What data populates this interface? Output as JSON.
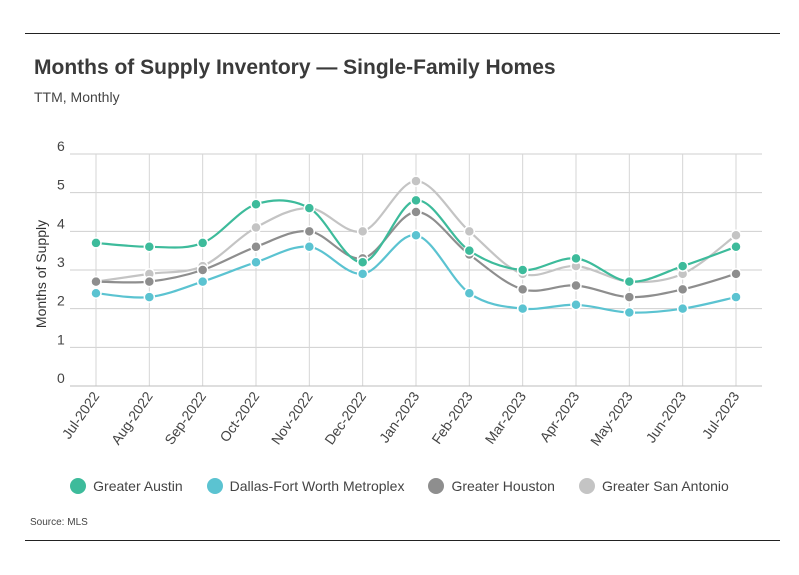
{
  "header": {
    "title": "Months of Supply Inventory — Single-Family Homes",
    "subtitle": "TTM, Monthly"
  },
  "footer": {
    "source": "Source: MLS"
  },
  "chart_data": {
    "type": "line",
    "title": "Months of Supply Inventory — Single-Family Homes",
    "subtitle": "TTM, Monthly",
    "xlabel": "",
    "ylabel": "Months of Supply",
    "ylim": [
      0,
      6
    ],
    "yticks": [
      "0",
      "1",
      "2",
      "3",
      "4",
      "5",
      "6"
    ],
    "grid": true,
    "legend_position": "bottom",
    "categories": [
      "Jul-2022",
      "Aug-2022",
      "Sep-2022",
      "Oct-2022",
      "Nov-2022",
      "Dec-2022",
      "Jan-2023",
      "Feb-2023",
      "Mar-2023",
      "Apr-2023",
      "May-2023",
      "Jun-2023",
      "Jul-2023"
    ],
    "series": [
      {
        "name": "Greater Austin",
        "color": "#3dbb9b",
        "values": [
          3.7,
          3.6,
          3.7,
          4.7,
          4.6,
          3.2,
          4.8,
          3.5,
          3.0,
          3.3,
          2.7,
          3.1,
          3.6
        ]
      },
      {
        "name": "Dallas-Fort Worth Metroplex",
        "color": "#5bc3d1",
        "values": [
          2.4,
          2.3,
          2.7,
          3.2,
          3.6,
          2.9,
          3.9,
          2.4,
          2.0,
          2.1,
          1.9,
          2.0,
          2.3
        ]
      },
      {
        "name": "Greater Houston",
        "color": "#8e8e8e",
        "values": [
          2.7,
          2.7,
          3.0,
          3.6,
          4.0,
          3.3,
          4.5,
          3.4,
          2.5,
          2.6,
          2.3,
          2.5,
          2.9
        ]
      },
      {
        "name": "Greater San Antonio",
        "color": "#c4c4c4",
        "values": [
          2.7,
          2.9,
          3.1,
          4.1,
          4.6,
          4.0,
          5.3,
          4.0,
          2.9,
          3.1,
          2.7,
          2.9,
          3.9
        ]
      }
    ]
  }
}
